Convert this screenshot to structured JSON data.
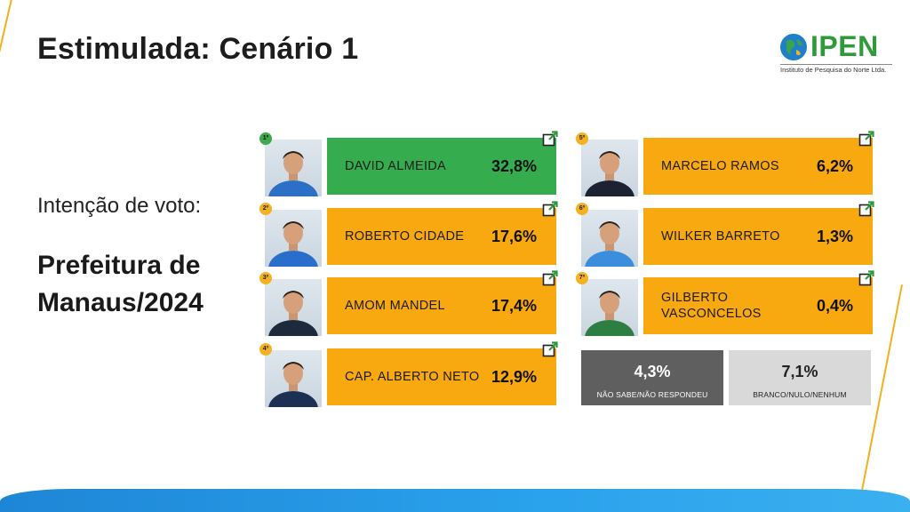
{
  "header": {
    "title": "Estimulada: Cenário 1"
  },
  "logo": {
    "word": "IPEN",
    "subtitle": "Instituto de Pesquisa do Norte Ltda."
  },
  "left": {
    "vote_label": "Intenção de voto:",
    "city_line1": "Prefeitura de",
    "city_line2": "Manaus/2024"
  },
  "candidates": [
    {
      "rank": "1º",
      "name": "DAVID ALMEIDA",
      "pct": "32,8%"
    },
    {
      "rank": "2º",
      "name": "ROBERTO CIDADE",
      "pct": "17,6%"
    },
    {
      "rank": "3º",
      "name": "AMOM MANDEL",
      "pct": "17,4%"
    },
    {
      "rank": "4º",
      "name": "CAP. ALBERTO NETO",
      "pct": "12,9%"
    },
    {
      "rank": "5º",
      "name": "MARCELO RAMOS",
      "pct": "6,2%"
    },
    {
      "rank": "6º",
      "name": "WILKER BARRETO",
      "pct": "1,3%"
    },
    {
      "rank": "7º",
      "name": "GILBERTO VASCONCELOS",
      "pct": "0,4%"
    }
  ],
  "other": {
    "nao_sabe": {
      "value": "4,3%",
      "label": "NÃO SABE/NÃO RESPONDEU"
    },
    "branco": {
      "value": "7,1%",
      "label": "BRANCO/NULO/NENHUM"
    }
  },
  "colors": {
    "winner": "#35ad4f",
    "bar": "#f8a90f",
    "nao_sabe": "#5f5f5f",
    "branco": "#d9d9d9",
    "accent_line": "#f2b01e",
    "band": "#1e86d6"
  },
  "icons": {
    "external_link": "external-link-icon",
    "globe": "globe-icon"
  }
}
